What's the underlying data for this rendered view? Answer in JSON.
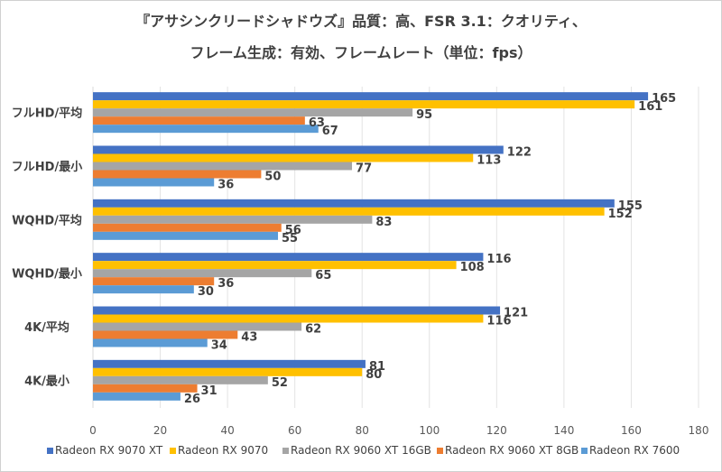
{
  "chart_data": {
    "type": "bar",
    "orientation": "horizontal",
    "title": "『アサシンクリードシャドウズ』品質：高、FSR 3.1：クオリティ、",
    "subtitle": "フレーム生成：有効、フレームレート（単位：fps）",
    "xlabel": "",
    "ylabel": "",
    "xlim": [
      0,
      180
    ],
    "xticks": [
      0,
      20,
      40,
      60,
      80,
      100,
      120,
      140,
      160,
      180
    ],
    "grid": true,
    "legend_position": "bottom",
    "categories": [
      "フルHD/平均",
      "フルHD/最小",
      "WQHD/平均",
      "WQHD/最小",
      "4K/平均",
      "4K/最小"
    ],
    "series": [
      {
        "name": "Radeon RX 9070 XT",
        "color": "#4472c4",
        "values": [
          165,
          122,
          155,
          116,
          121,
          81
        ]
      },
      {
        "name": "Radeon RX 9070",
        "color": "#ffc000",
        "values": [
          161,
          113,
          152,
          108,
          116,
          80
        ]
      },
      {
        "name": "Radeon RX 9060 XT 16GB",
        "color": "#a5a5a5",
        "values": [
          95,
          77,
          83,
          65,
          62,
          52
        ]
      },
      {
        "name": "Radeon RX 9060 XT 8GB",
        "color": "#ed7d31",
        "values": [
          63,
          50,
          56,
          36,
          43,
          31
        ]
      },
      {
        "name": "Radeon RX 7600",
        "color": "#5b9bd5",
        "values": [
          67,
          36,
          55,
          30,
          34,
          26
        ]
      }
    ]
  }
}
